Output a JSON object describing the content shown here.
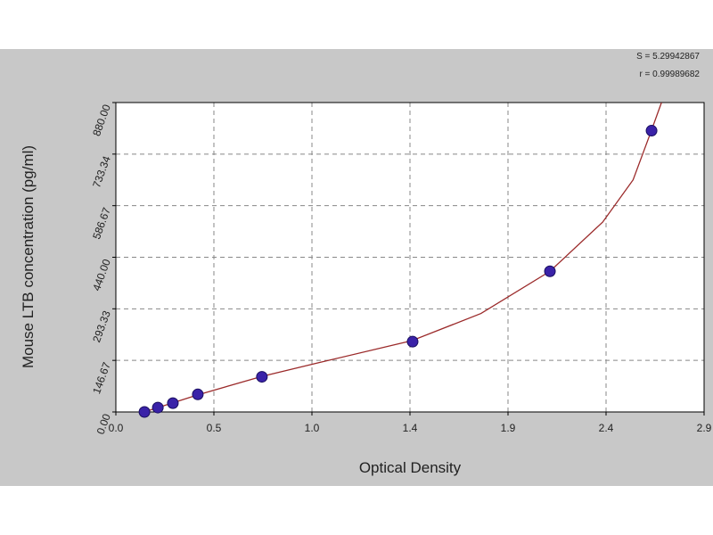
{
  "chart_data": {
    "type": "scatter",
    "annotations": [
      "S = 5.29942867",
      "r = 0.99989682"
    ],
    "x_label": "Optical Density",
    "y_label": "Mouse LTB concentration (pg/ml)",
    "xlim": [
      0,
      2.9
    ],
    "ylim": [
      0,
      880
    ],
    "xticks": [
      {
        "value": 0,
        "label": "0.0"
      },
      {
        "value": 0.4833,
        "label": "0.5"
      },
      {
        "value": 0.9667,
        "label": "1.0"
      },
      {
        "value": 1.45,
        "label": "1.4"
      },
      {
        "value": 1.9333,
        "label": "1.9"
      },
      {
        "value": 2.4167,
        "label": "2.4"
      },
      {
        "value": 2.9,
        "label": "2.9"
      }
    ],
    "yticks": [
      {
        "value": 0,
        "label": "0.00"
      },
      {
        "value": 146.67,
        "label": "146.67"
      },
      {
        "value": 293.33,
        "label": "293.33"
      },
      {
        "value": 440,
        "label": "440.00"
      },
      {
        "value": 586.67,
        "label": "586.67"
      },
      {
        "value": 733.34,
        "label": "733.34"
      },
      {
        "value": 880,
        "label": "880.00"
      }
    ],
    "grid": true,
    "series": [
      {
        "type": "scatter",
        "color": "#3a22a8",
        "x": [
          0.141,
          0.207,
          0.281,
          0.404,
          0.72,
          1.463,
          2.14,
          2.641
        ],
        "values": [
          0,
          12.5,
          25,
          50,
          100,
          200,
          400,
          800
        ]
      },
      {
        "type": "line",
        "color": "#9b2a2a",
        "x": [
          0.14,
          0.4,
          0.72,
          1.0,
          1.46,
          1.8,
          2.14,
          2.4,
          2.55,
          2.64,
          2.69
        ],
        "values": [
          0,
          48,
          101,
          140,
          203,
          280,
          400,
          540,
          660,
          800,
          880
        ]
      }
    ]
  }
}
